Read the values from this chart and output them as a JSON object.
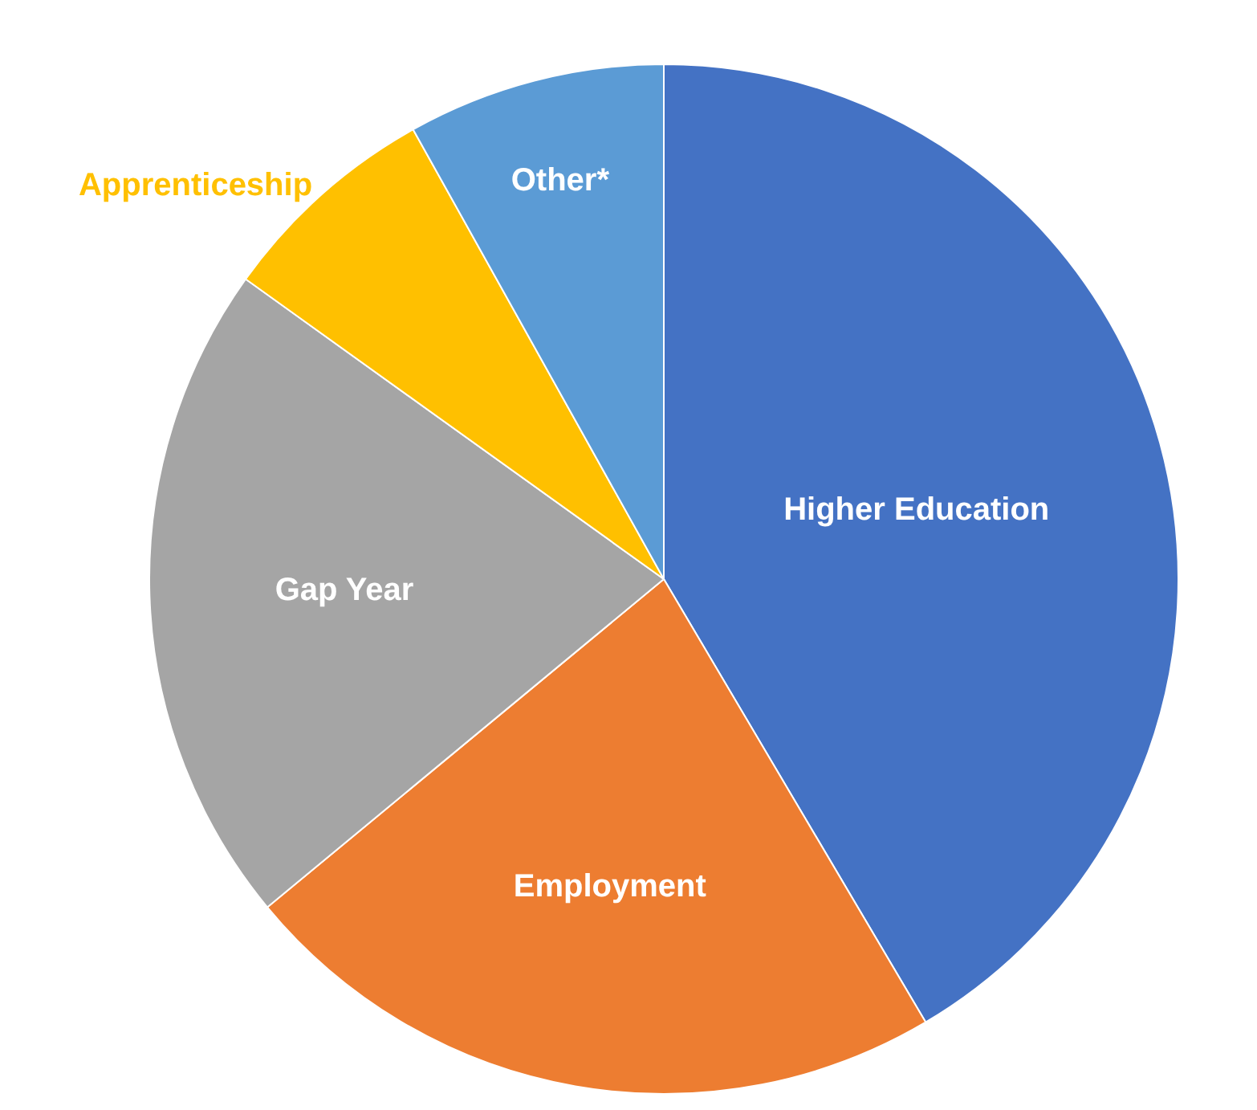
{
  "chart_data": {
    "type": "pie",
    "categories": [
      "Higher Education",
      "Employment",
      "Gap Year",
      "Apprenticeship",
      "Other*"
    ],
    "values": [
      41.5,
      22.5,
      20.9,
      7,
      8.1
    ],
    "colors": [
      "#4472c4",
      "#ed7d31",
      "#a5a5a5",
      "#ffc000",
      "#5b9bd5"
    ],
    "legend": false
  }
}
